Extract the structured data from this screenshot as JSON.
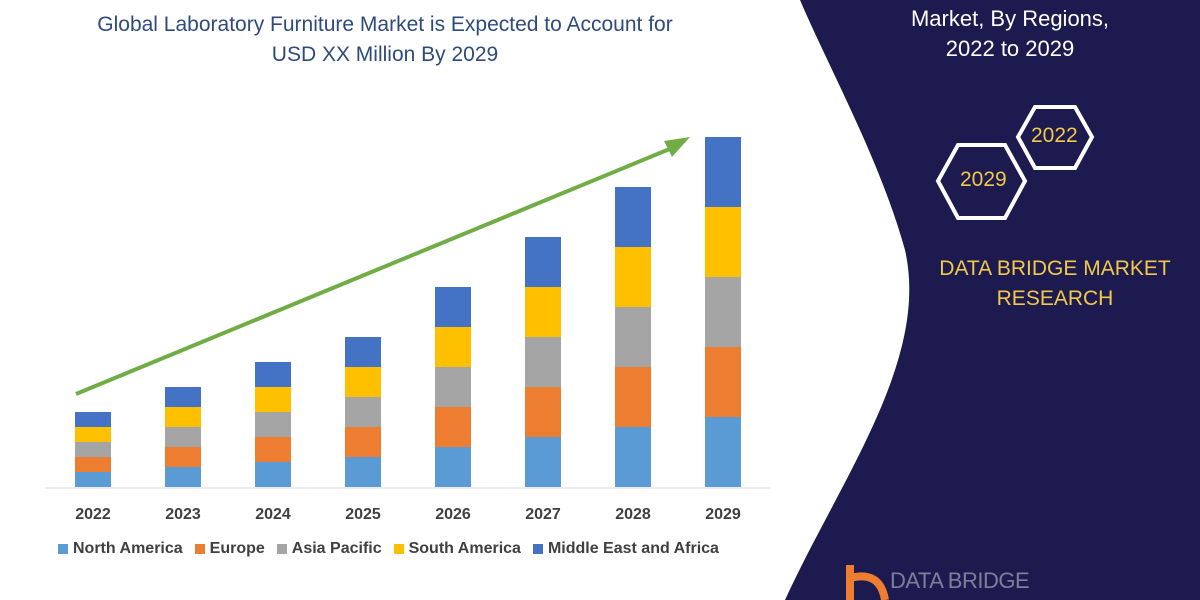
{
  "header": {
    "title_line1": "Global Laboratory Furniture Market is Expected to Account for",
    "title_line2": "USD XX Million By 2029"
  },
  "panel": {
    "title_line1": "Market,  By Regions,",
    "title_line2": "2022 to 2029",
    "hex_left": "2029",
    "hex_right": "2022",
    "brand_line1": "DATA BRIDGE MARKET",
    "brand_line2": "RESEARCH",
    "logo_text": "DATA BRIDGE",
    "color": "#1c1a4f",
    "accent": "#f0c94a"
  },
  "chart_data": {
    "type": "bar",
    "stacked": true,
    "title": "",
    "xlabel": "",
    "ylabel": "",
    "categories": [
      "2022",
      "2023",
      "2024",
      "2025",
      "2026",
      "2027",
      "2028",
      "2029"
    ],
    "series": [
      {
        "name": "North America",
        "color": "#5b9bd5",
        "values": [
          15,
          20,
          25,
          30,
          40,
          50,
          60,
          70
        ]
      },
      {
        "name": "Europe",
        "color": "#ed7d31",
        "values": [
          15,
          20,
          25,
          30,
          40,
          50,
          60,
          70
        ]
      },
      {
        "name": "Asia Pacific",
        "color": "#a5a5a5",
        "values": [
          15,
          20,
          25,
          30,
          40,
          50,
          60,
          70
        ]
      },
      {
        "name": "South America",
        "color": "#ffc000",
        "values": [
          15,
          20,
          25,
          30,
          40,
          50,
          60,
          70
        ]
      },
      {
        "name": "Middle East and Africa",
        "color": "#4472c4",
        "values": [
          15,
          20,
          25,
          30,
          40,
          50,
          60,
          70
        ]
      }
    ],
    "ylim": [
      0,
      352
    ],
    "grid": false,
    "legend": "bottom",
    "trend_arrow_color": "#70ad47"
  }
}
